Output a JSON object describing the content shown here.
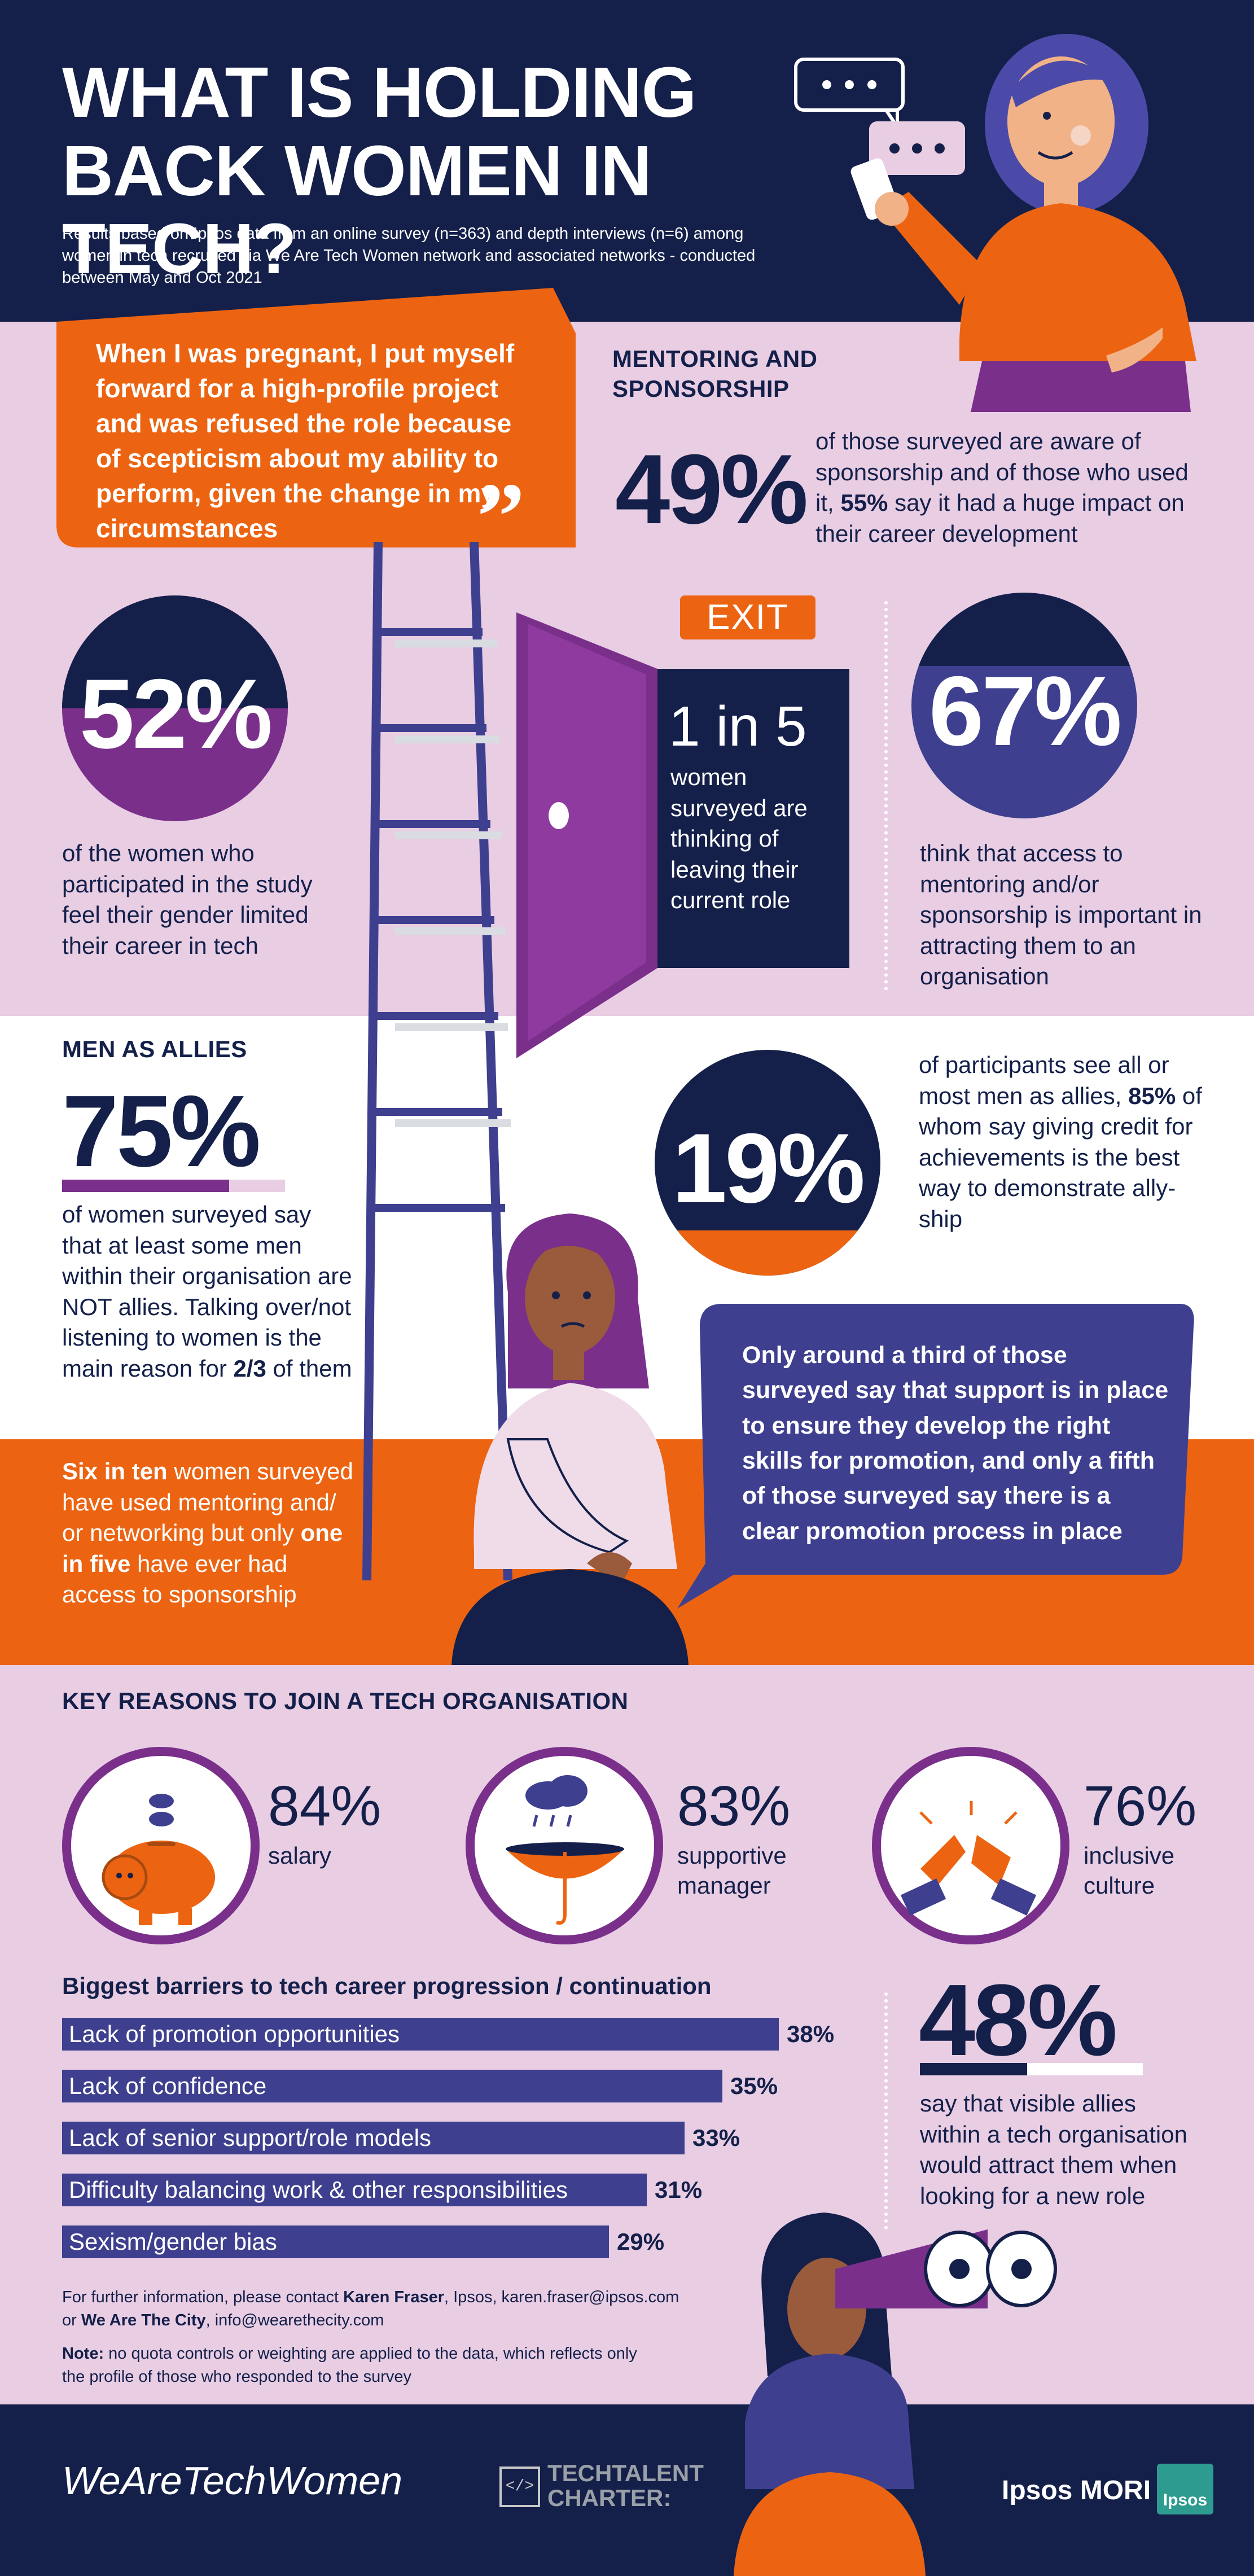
{
  "header": {
    "title_line1": "WHAT IS HOLDING",
    "title_line2": "BACK WOMEN IN TECH?",
    "subtitle": "Results based on Ipsos data from an online survey (n=363) and depth interviews (n=6) among women in tech recruited via We Are Tech Women network and associated networks - conducted between May and Oct 2021"
  },
  "quote": {
    "text": "When I was pregnant, I put myself forward for a high-profile project and was refused the role because of scepticism about my ability to perform, given the change in my circumstances",
    "mark": "”"
  },
  "mentoring": {
    "heading_line1": "MENTORING AND",
    "heading_line2": "SPONSORSHIP",
    "stat": "49%",
    "text_before": "of those surveyed are aware of sponsorship and of those who used it, ",
    "text_bold": "55%",
    "text_after": " say it had a huge impact on their career development"
  },
  "gender_limit": {
    "stat": "52%",
    "fill": 0.5,
    "text": "of the women who participated in the study feel their gender limited their career in tech"
  },
  "exit": {
    "sign": "EXIT",
    "stat": "1 in 5",
    "text": "women surveyed are thinking of leaving their current role"
  },
  "access": {
    "stat": "67%",
    "fill": 0.67,
    "text": "think that access to mentoring and/or sponsorship is important in attracting them to an organisation"
  },
  "allies": {
    "heading": "MEN AS ALLIES",
    "stat": "75%",
    "bar_fill": 0.75,
    "text_before": "of women surveyed say that at least some men within their organisation are NOT allies. Talking over/not listening to women is the main reason for ",
    "text_bold": "2/3",
    "text_after": " of them"
  },
  "allies_19": {
    "stat": "19%",
    "fill": 0.19,
    "text_before": "of participants see all or most men as allies, ",
    "text_bold": "85%",
    "text_after": " of whom say giving credit for achievements is the best way to demonstrate ally-ship"
  },
  "support_bubble": {
    "text": "Only around a third of those surveyed say that support is in place to ensure they develop the right skills for promotion, and only a fifth of those surveyed say there is a clear promotion process in place"
  },
  "mentoring_usage": {
    "bold1": "Six in ten",
    "text1": " women surveyed have used mentoring and/ or networking but only ",
    "bold2": "one in five",
    "text2": " have ever had access to sponsorship"
  },
  "reasons": {
    "heading": "KEY REASONS TO JOIN A TECH ORGANISATION",
    "items": [
      {
        "pct": "84%",
        "label": "salary",
        "icon": "piggy-bank-icon"
      },
      {
        "pct": "83%",
        "label_line1": "supportive",
        "label_line2": "manager",
        "icon": "umbrella-icon"
      },
      {
        "pct": "76%",
        "label_line1": "inclusive",
        "label_line2": "culture",
        "icon": "puzzle-hands-icon"
      }
    ]
  },
  "chart_data": {
    "type": "bar",
    "title": "Biggest barriers to tech career progression / continuation",
    "categories": [
      "Lack of promotion opportunities",
      "Lack of confidence",
      "Lack of senior support/role models",
      "Difficulty balancing work & other responsibilities",
      "Sexism/gender bias"
    ],
    "values": [
      38,
      35,
      33,
      31,
      29
    ],
    "labels": [
      "38%",
      "35%",
      "33%",
      "31%",
      "29%"
    ],
    "orientation": "horizontal",
    "color": "#3e3f8e"
  },
  "visible_allies": {
    "stat": "48%",
    "bar_fill": 0.48,
    "text": "say that visible allies within a tech organisation would attract them when looking for a new role"
  },
  "contact": {
    "line1_a": "For further information, please contact ",
    "line1_bold": "Karen Fraser",
    "line1_b": ", Ipsos, karen.fraser@ipsos.com",
    "line2_a": "or ",
    "line2_bold": "We Are The City",
    "line2_b": ", info@wearethecity.com",
    "note_bold": "Note:",
    "note_text": " no quota controls or weighting are applied to the data, which reflects only the profile of those who responded to the survey"
  },
  "footer": {
    "logo1": "WeAreTechWomen",
    "logo2_line1": "TECHTALENT",
    "logo2_line2": "CHARTER:",
    "logo2_icon": "</>",
    "logo3": "Ipsos MORI",
    "logo3_badge": "Ipsos"
  },
  "colors": {
    "navy": "#14204a",
    "pink": "#e8cde3",
    "orange": "#ec6412",
    "purple": "#7a2f8b",
    "blue": "#3e3f8e"
  }
}
